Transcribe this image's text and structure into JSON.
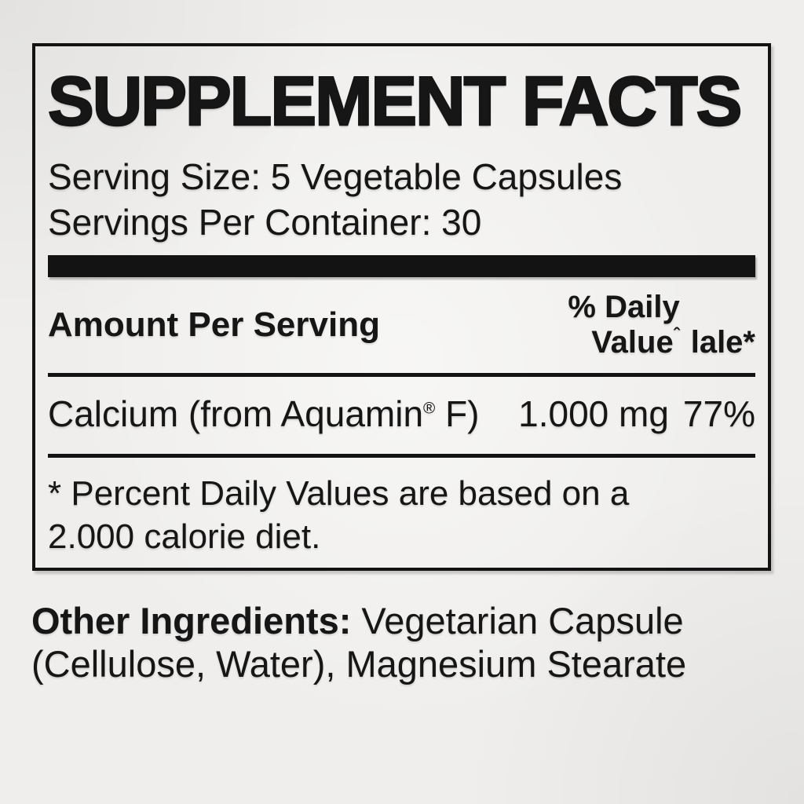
{
  "panel": {
    "title": "SUPPLEMENT FACTS",
    "serving_size": "Serving Size: 5 Vegetable Capsules",
    "servings_per_container": "Servings Per Container: 30",
    "amount_per_serving": "Amount Per Serving",
    "daily_value_header": {
      "line1": "% Daily",
      "line2": "Value",
      "caret": "ˆ",
      "extra": "lale*"
    },
    "rows": [
      {
        "name_pre": "Calcium (from Aquamin",
        "trademark": "®",
        "name_post": " F)",
        "amount": "1.000 mg",
        "daily_value": "77%"
      }
    ],
    "footnote": "* Percent Daily Values are based on a 2.000 calorie diet."
  },
  "other_ingredients": {
    "label": "Other Ingredients:",
    "value": " Vegetarian Capsule (Cellulose, Water), Magnesium Stearate"
  },
  "colors": {
    "ink": "#161616",
    "paper": "#efeeec"
  }
}
